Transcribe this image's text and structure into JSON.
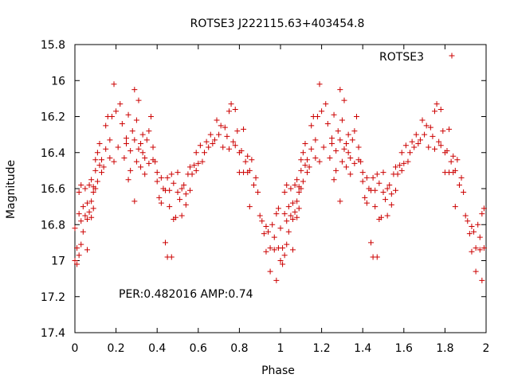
{
  "chart_data": {
    "type": "scatter",
    "title": "ROTSE3 J222115.63+403454.8",
    "xlabel": "Phase",
    "ylabel": "Magnitude",
    "xlim": [
      0,
      2
    ],
    "ylim": [
      17.4,
      15.8
    ],
    "y_inverted": true,
    "grid": false,
    "legend": {
      "position": "top-right",
      "entries": [
        "ROTSE3"
      ]
    },
    "x_ticks": [
      "0",
      "0.2",
      "0.4",
      "0.6",
      "0.8",
      "1",
      "1.2",
      "1.4",
      "1.6",
      "1.8",
      "2"
    ],
    "y_ticks": [
      "15.8",
      "16",
      "16.2",
      "16.4",
      "16.6",
      "16.8",
      "17",
      "17.2",
      "17.4"
    ],
    "annotation": "PER:0.482016 AMP:0.74",
    "series": [
      {
        "name": "ROTSE3",
        "color": "#cc0000",
        "marker": "plus",
        "repeat_period": 1,
        "points": [
          [
            0.0,
            17.0
          ],
          [
            0.0,
            16.82
          ],
          [
            0.01,
            16.93
          ],
          [
            0.01,
            17.02
          ],
          [
            0.02,
            16.97
          ],
          [
            0.02,
            16.62
          ],
          [
            0.02,
            16.74
          ],
          [
            0.03,
            16.78
          ],
          [
            0.03,
            16.58
          ],
          [
            0.03,
            16.91
          ],
          [
            0.04,
            16.84
          ],
          [
            0.04,
            16.7
          ],
          [
            0.05,
            16.75
          ],
          [
            0.05,
            16.6
          ],
          [
            0.06,
            16.68
          ],
          [
            0.06,
            16.77
          ],
          [
            0.06,
            16.94
          ],
          [
            0.07,
            16.58
          ],
          [
            0.07,
            16.73
          ],
          [
            0.08,
            16.76
          ],
          [
            0.08,
            16.55
          ],
          [
            0.08,
            16.67
          ],
          [
            0.09,
            16.62
          ],
          [
            0.09,
            16.59
          ],
          [
            0.09,
            16.71
          ],
          [
            0.1,
            16.44
          ],
          [
            0.1,
            16.6
          ],
          [
            0.1,
            16.5
          ],
          [
            0.11,
            16.4
          ],
          [
            0.11,
            16.56
          ],
          [
            0.12,
            16.47
          ],
          [
            0.12,
            16.35
          ],
          [
            0.13,
            16.51
          ],
          [
            0.13,
            16.44
          ],
          [
            0.14,
            16.48
          ],
          [
            0.15,
            16.38
          ],
          [
            0.15,
            16.25
          ],
          [
            0.16,
            16.2
          ],
          [
            0.17,
            16.33
          ],
          [
            0.17,
            16.43
          ],
          [
            0.18,
            16.2
          ],
          [
            0.19,
            16.02
          ],
          [
            0.19,
            16.45
          ],
          [
            0.2,
            16.17
          ],
          [
            0.21,
            16.37
          ],
          [
            0.22,
            16.13
          ],
          [
            0.23,
            16.24
          ],
          [
            0.24,
            16.43
          ],
          [
            0.25,
            16.32
          ],
          [
            0.25,
            16.35
          ],
          [
            0.26,
            16.19
          ],
          [
            0.26,
            16.55
          ],
          [
            0.27,
            16.39
          ],
          [
            0.27,
            16.5
          ],
          [
            0.28,
            16.28
          ],
          [
            0.29,
            16.05
          ],
          [
            0.29,
            16.33
          ],
          [
            0.29,
            16.67
          ],
          [
            0.3,
            16.45
          ],
          [
            0.3,
            16.22
          ],
          [
            0.31,
            16.38
          ],
          [
            0.31,
            16.11
          ],
          [
            0.32,
            16.35
          ],
          [
            0.32,
            16.48
          ],
          [
            0.33,
            16.3
          ],
          [
            0.33,
            16.4
          ],
          [
            0.34,
            16.43
          ],
          [
            0.34,
            16.52
          ],
          [
            0.35,
            16.33
          ],
          [
            0.36,
            16.28
          ],
          [
            0.36,
            16.46
          ],
          [
            0.37,
            16.2
          ],
          [
            0.38,
            16.37
          ],
          [
            0.38,
            16.44
          ],
          [
            0.39,
            16.45
          ],
          [
            0.4,
            16.51
          ],
          [
            0.4,
            16.56
          ],
          [
            0.41,
            16.65
          ],
          [
            0.42,
            16.54
          ],
          [
            0.42,
            16.68
          ],
          [
            0.43,
            16.6
          ],
          [
            0.44,
            16.9
          ],
          [
            0.44,
            16.61
          ],
          [
            0.45,
            16.54
          ],
          [
            0.45,
            16.98
          ],
          [
            0.46,
            16.61
          ],
          [
            0.46,
            16.7
          ],
          [
            0.47,
            16.52
          ],
          [
            0.47,
            16.98
          ],
          [
            0.48,
            16.77
          ],
          [
            0.48,
            16.57
          ],
          [
            0.49,
            16.76
          ],
          [
            0.5,
            16.62
          ],
          [
            0.5,
            16.51
          ],
          [
            0.51,
            16.66
          ],
          [
            0.52,
            16.6
          ],
          [
            0.52,
            16.75
          ],
          [
            0.53,
            16.58
          ],
          [
            0.54,
            16.69
          ],
          [
            0.54,
            16.63
          ],
          [
            0.55,
            16.52
          ],
          [
            0.56,
            16.61
          ],
          [
            0.56,
            16.48
          ],
          [
            0.57,
            16.52
          ],
          [
            0.58,
            16.47
          ],
          [
            0.59,
            16.4
          ],
          [
            0.59,
            16.5
          ],
          [
            0.6,
            16.46
          ],
          [
            0.61,
            16.36
          ],
          [
            0.62,
            16.45
          ],
          [
            0.63,
            16.4
          ],
          [
            0.64,
            16.34
          ],
          [
            0.65,
            16.37
          ],
          [
            0.66,
            16.3
          ],
          [
            0.67,
            16.35
          ],
          [
            0.68,
            16.33
          ],
          [
            0.69,
            16.22
          ],
          [
            0.7,
            16.3
          ],
          [
            0.71,
            16.25
          ],
          [
            0.72,
            16.37
          ],
          [
            0.73,
            16.26
          ],
          [
            0.74,
            16.31
          ],
          [
            0.75,
            16.17
          ],
          [
            0.75,
            16.38
          ],
          [
            0.76,
            16.13
          ],
          [
            0.77,
            16.34
          ],
          [
            0.78,
            16.16
          ],
          [
            0.78,
            16.36
          ],
          [
            0.79,
            16.28
          ],
          [
            0.8,
            16.4
          ],
          [
            0.8,
            16.51
          ],
          [
            0.81,
            16.39
          ],
          [
            0.82,
            16.51
          ],
          [
            0.82,
            16.27
          ],
          [
            0.83,
            16.45
          ],
          [
            0.84,
            16.51
          ],
          [
            0.84,
            16.42
          ],
          [
            0.85,
            16.5
          ],
          [
            0.85,
            16.7
          ],
          [
            0.86,
            16.44
          ],
          [
            0.87,
            16.58
          ],
          [
            0.88,
            16.54
          ],
          [
            0.89,
            16.62
          ],
          [
            0.9,
            16.75
          ],
          [
            0.91,
            16.78
          ],
          [
            0.92,
            16.85
          ],
          [
            0.93,
            16.81
          ],
          [
            0.93,
            16.95
          ],
          [
            0.94,
            16.84
          ],
          [
            0.95,
            17.06
          ],
          [
            0.95,
            16.93
          ],
          [
            0.96,
            16.8
          ],
          [
            0.97,
            16.94
          ],
          [
            0.97,
            16.87
          ],
          [
            0.98,
            17.11
          ],
          [
            0.98,
            16.74
          ],
          [
            0.99,
            16.93
          ],
          [
            0.99,
            16.71
          ]
        ]
      }
    ]
  }
}
